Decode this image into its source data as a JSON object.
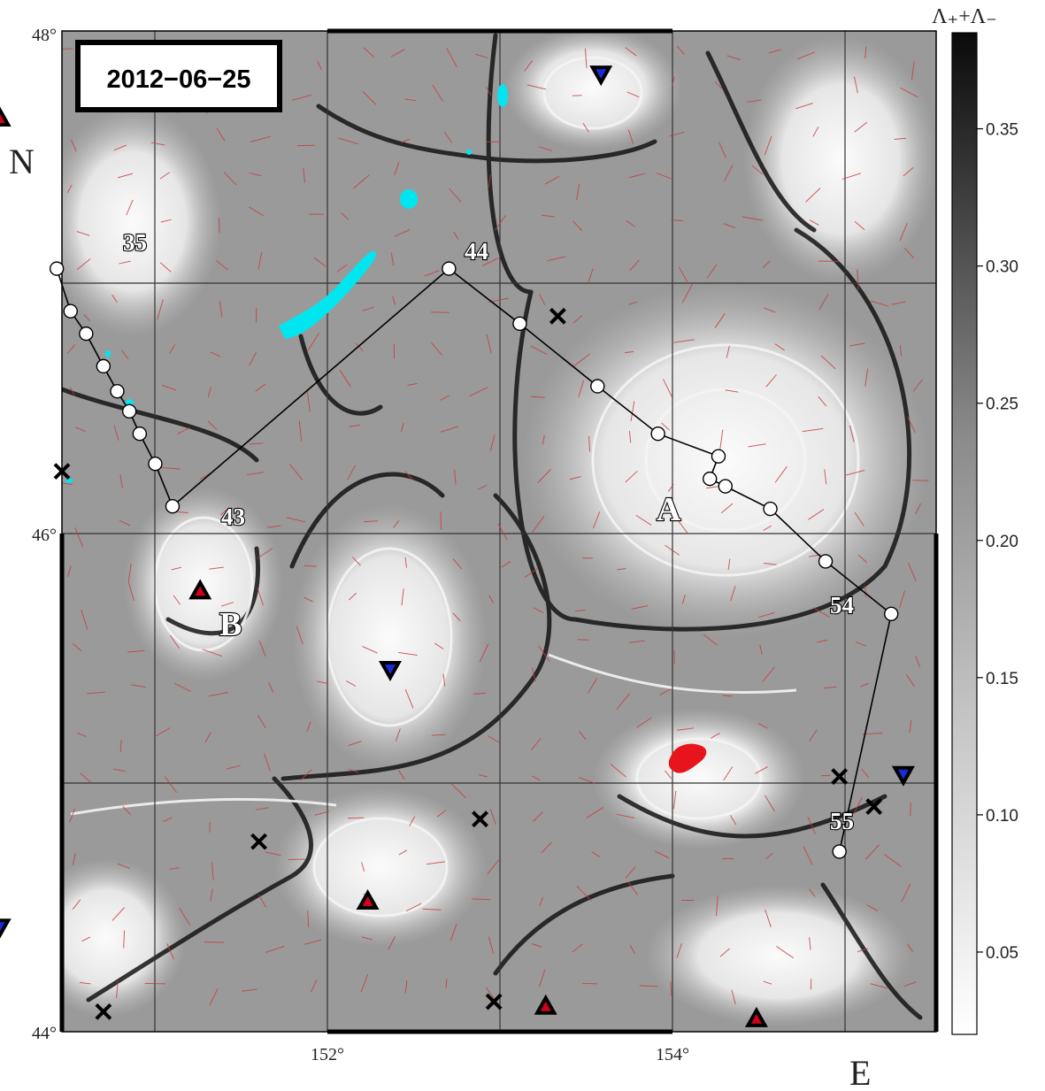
{
  "date_label": "2012−06−25",
  "axis": {
    "north_letter": "N",
    "east_letter": "E",
    "lat_labels": [
      "48°",
      "46°",
      "44°"
    ],
    "lon_labels": [
      "152°",
      "154°"
    ]
  },
  "colorbar": {
    "title": "Λ₊+Λ₋",
    "ticks": [
      "0.35",
      "0.30",
      "0.25",
      "0.20",
      "0.15",
      "0.10",
      "0.05"
    ],
    "tick_values": [
      0.35,
      0.3,
      0.25,
      0.2,
      0.15,
      0.1,
      0.05
    ],
    "min": 0.02,
    "max": 0.385
  },
  "station_labels": [
    "35",
    "43",
    "44",
    "54",
    "55"
  ],
  "region_labels": [
    "A",
    "B"
  ],
  "stations": [
    [
      150.45,
      47.05
    ],
    [
      150.53,
      46.88
    ],
    [
      150.62,
      46.79
    ],
    [
      150.72,
      46.66
    ],
    [
      150.8,
      46.56
    ],
    [
      150.87,
      46.48
    ],
    [
      150.93,
      46.39
    ],
    [
      151.02,
      46.27
    ],
    [
      151.12,
      46.1
    ],
    [
      152.72,
      47.05
    ],
    [
      153.13,
      46.83
    ],
    [
      153.58,
      46.58
    ],
    [
      153.93,
      46.39
    ],
    [
      154.28,
      46.3
    ],
    [
      154.23,
      46.21
    ],
    [
      154.32,
      46.18
    ],
    [
      154.58,
      46.09
    ],
    [
      154.9,
      45.88
    ],
    [
      155.28,
      45.67
    ],
    [
      154.98,
      44.72
    ]
  ],
  "cyclones": [
    [
      150.12,
      47.65
    ],
    [
      151.28,
      45.76
    ],
    [
      152.25,
      44.52
    ],
    [
      153.28,
      44.1
    ],
    [
      154.5,
      44.05
    ]
  ],
  "anticyclones": [
    [
      153.6,
      47.83
    ],
    [
      152.38,
      45.45
    ],
    [
      155.35,
      45.03
    ],
    [
      150.12,
      44.42
    ]
  ],
  "hyperbolic_points": [
    [
      150.48,
      46.24
    ],
    [
      151.62,
      44.76
    ],
    [
      152.9,
      44.85
    ],
    [
      152.98,
      44.12
    ],
    [
      155.18,
      44.9
    ],
    [
      154.98,
      45.02
    ],
    [
      150.72,
      44.08
    ],
    [
      153.35,
      46.86
    ]
  ],
  "colors": {
    "station_fill": "#ffffff",
    "cyclone_fill": "#d0021b",
    "anticyclone_fill": "#1a2bd6",
    "drifter_water": "#00e6f0",
    "red_patch": "#e8141c",
    "velocity_arrow": "#c83a3a"
  },
  "icons": {
    "cyclone": "triangle-up-icon",
    "anticyclone": "triangle-down-icon",
    "hyperbolic": "x-cross-icon",
    "station": "circle-icon"
  }
}
